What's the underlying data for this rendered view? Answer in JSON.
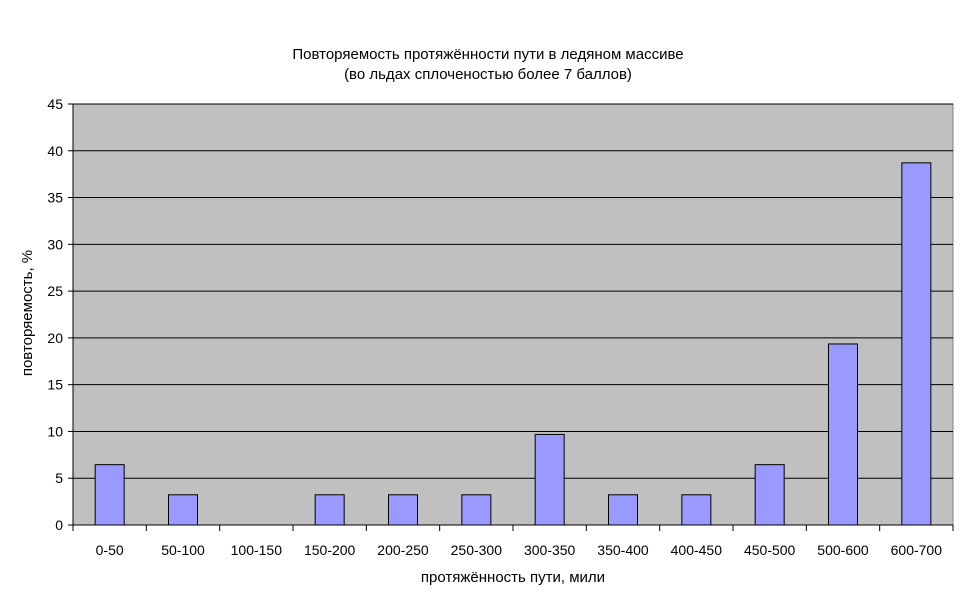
{
  "chart_data": {
    "type": "bar",
    "title": "Повторяемость протяжённости пути в ледяном массиве",
    "subtitle": "(во льдах сплоченостью более 7 баллов)",
    "xlabel": "протяжённость пути, мили",
    "ylabel": "повторяемость, %",
    "categories": [
      "0-50",
      "50-100",
      "100-150",
      "150-200",
      "200-250",
      "250-300",
      "300-350",
      "350-400",
      "400-450",
      "450-500",
      "500-600",
      "600-700"
    ],
    "values": [
      6.45,
      3.23,
      0,
      3.23,
      3.23,
      3.23,
      9.68,
      3.23,
      3.23,
      6.45,
      19.35,
      38.71
    ],
    "ylim": [
      0,
      45
    ],
    "yticks": [
      "0",
      "5",
      "10",
      "15",
      "20",
      "25",
      "30",
      "35",
      "40",
      "45"
    ],
    "grid": true,
    "legend": "none",
    "colors": {
      "plot_background": "#c0c0c0",
      "bar_fill": "#9999ff",
      "bar_stroke": "#000000",
      "gridline": "#000000"
    }
  }
}
